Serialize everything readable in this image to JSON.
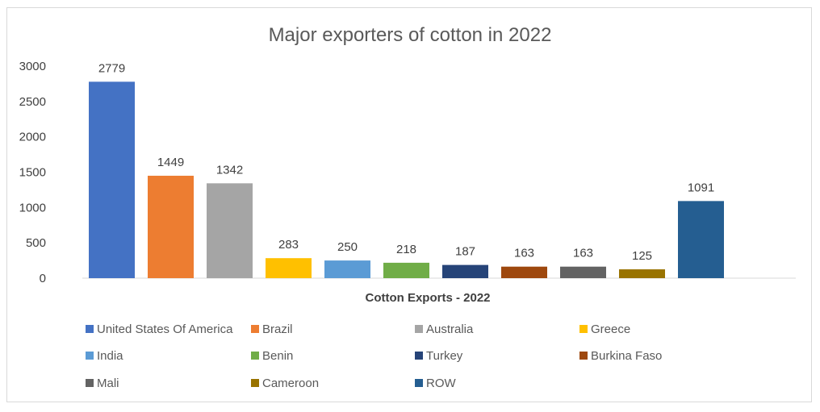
{
  "chart_data": {
    "type": "bar",
    "title": "Major exporters of cotton in 2022",
    "xlabel": "Cotton Exports - 2022",
    "ylabel": "",
    "ylim": [
      0,
      3000
    ],
    "yticks": [
      0,
      500,
      1000,
      1500,
      2000,
      2500,
      3000
    ],
    "grid": false,
    "legend": "bottom",
    "categories": [
      "United States Of America",
      "Brazil",
      "Australia",
      "Greece",
      "India",
      "Benin",
      "Turkey",
      "Burkina Faso",
      "Mali",
      "Cameroon",
      "ROW"
    ],
    "values": [
      2779,
      1449,
      1342,
      283,
      250,
      218,
      187,
      163,
      163,
      125,
      1091
    ],
    "colors": [
      "#4472c4",
      "#ed7d31",
      "#a5a5a5",
      "#ffc000",
      "#5b9bd5",
      "#70ad47",
      "#264478",
      "#9e480e",
      "#636363",
      "#997300",
      "#255e91"
    ]
  }
}
